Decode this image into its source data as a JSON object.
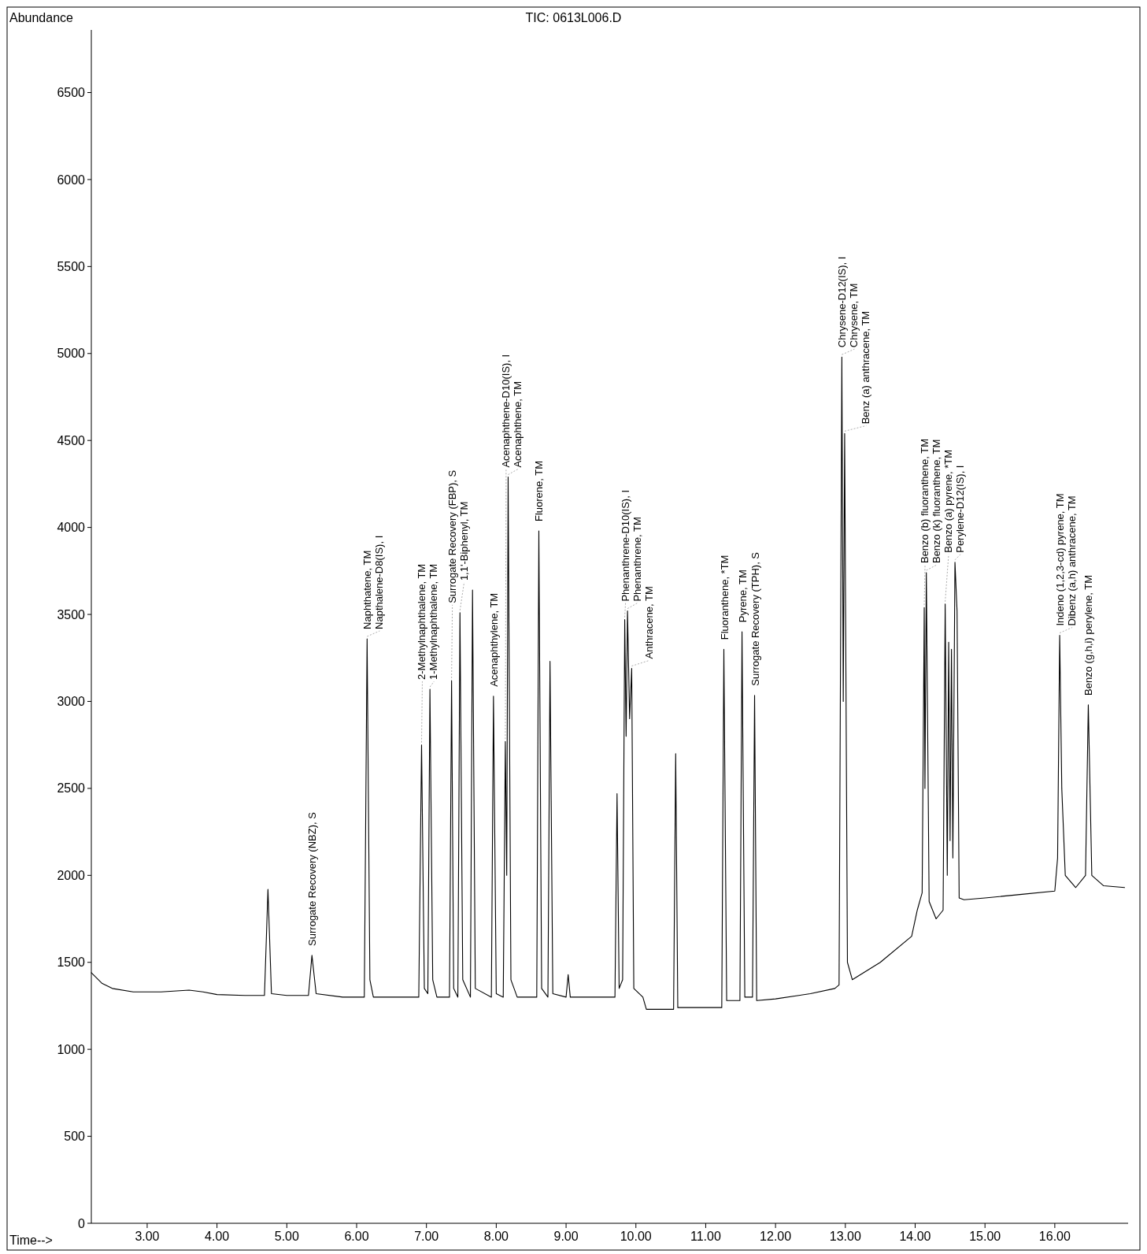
{
  "chart_data": {
    "type": "line",
    "title": "TIC: 0613L006.D",
    "xlabel": "Time-->",
    "ylabel": "Abundance",
    "xlim": [
      2.2,
      17.05
    ],
    "ylim": [
      0,
      6860
    ],
    "xticks": [
      {
        "value": 3,
        "label": "3.00"
      },
      {
        "value": 4,
        "label": "4.00"
      },
      {
        "value": 5,
        "label": "5.00"
      },
      {
        "value": 6,
        "label": "6.00"
      },
      {
        "value": 7,
        "label": "7.00"
      },
      {
        "value": 8,
        "label": "8.00"
      },
      {
        "value": 9,
        "label": "9.00"
      },
      {
        "value": 10,
        "label": "10.00"
      },
      {
        "value": 11,
        "label": "11.00"
      },
      {
        "value": 12,
        "label": "12.00"
      },
      {
        "value": 13,
        "label": "13.00"
      },
      {
        "value": 14,
        "label": "14.00"
      },
      {
        "value": 15,
        "label": "15.00"
      },
      {
        "value": 16,
        "label": "16.00"
      }
    ],
    "yticks": [
      0,
      500,
      1000,
      1500,
      2000,
      2500,
      3000,
      3500,
      4000,
      4500,
      5000,
      5500,
      6000,
      6500
    ],
    "grid": false,
    "marker": "none",
    "line_style": "solid",
    "series": [
      {
        "color": "#000000",
        "x": [
          2.2,
          2.35,
          2.5,
          2.8,
          3.2,
          3.6,
          3.8,
          4.0,
          4.4,
          4.68,
          4.73,
          4.78,
          5.0,
          5.31,
          5.36,
          5.42,
          5.8,
          6.11,
          6.15,
          6.19,
          6.24,
          6.5,
          6.89,
          6.93,
          6.97,
          7.02,
          7.05,
          7.09,
          7.15,
          7.33,
          7.36,
          7.39,
          7.45,
          7.48,
          7.52,
          7.63,
          7.66,
          7.7,
          7.93,
          7.96,
          8.0,
          8.1,
          8.13,
          8.15,
          8.17,
          8.21,
          8.3,
          8.58,
          8.61,
          8.65,
          8.74,
          8.77,
          8.81,
          9.0,
          9.03,
          9.06,
          9.5,
          9.7,
          9.73,
          9.76,
          9.81,
          9.84,
          9.86,
          9.88,
          9.91,
          9.94,
          9.97,
          10.1,
          10.15,
          10.2,
          10.5,
          10.54,
          10.57,
          10.6,
          11.0,
          11.23,
          11.26,
          11.3,
          11.49,
          11.52,
          11.56,
          11.67,
          11.7,
          11.73,
          12.0,
          12.5,
          12.85,
          12.91,
          12.95,
          12.97,
          12.99,
          13.03,
          13.1,
          13.5,
          13.95,
          14.03,
          14.1,
          14.13,
          14.14,
          14.16,
          14.2,
          14.3,
          14.4,
          14.43,
          14.46,
          14.48,
          14.5,
          14.52,
          14.54,
          14.57,
          14.6,
          14.63,
          14.7,
          15.0,
          15.5,
          16.0,
          16.04,
          16.07,
          16.1,
          16.15,
          16.3,
          16.44,
          16.48,
          16.53,
          16.7,
          17.0
        ],
        "values": [
          1440,
          1380,
          1350,
          1330,
          1330,
          1340,
          1330,
          1315,
          1310,
          1310,
          1920,
          1320,
          1310,
          1310,
          1540,
          1320,
          1300,
          1300,
          3360,
          1400,
          1300,
          1300,
          1300,
          2750,
          1350,
          1320,
          3070,
          1400,
          1300,
          1300,
          3120,
          1350,
          1300,
          3510,
          1400,
          1300,
          3640,
          1350,
          1300,
          3030,
          1320,
          1300,
          2770,
          2000,
          4290,
          1400,
          1300,
          1300,
          3980,
          1350,
          1300,
          3230,
          1320,
          1300,
          1430,
          1300,
          1300,
          1300,
          2470,
          1350,
          1400,
          3470,
          2800,
          3520,
          2900,
          3190,
          1350,
          1300,
          1230,
          1230,
          1230,
          1230,
          2700,
          1240,
          1240,
          1240,
          3300,
          1280,
          1280,
          3400,
          1300,
          1300,
          3035,
          1280,
          1290,
          1320,
          1350,
          1370,
          4980,
          3000,
          4540,
          1500,
          1400,
          1500,
          1650,
          1800,
          1900,
          3540,
          2500,
          3740,
          1850,
          1750,
          1800,
          3560,
          2000,
          3340,
          2200,
          3300,
          2100,
          3800,
          3520,
          1870,
          1860,
          1870,
          1890,
          1910,
          2100,
          3380,
          2500,
          2000,
          1930,
          2000,
          2980,
          2000,
          1940,
          1930
        ]
      }
    ],
    "annotations": [
      {
        "text": "Surrogate Recovery (NBZ), S",
        "x": 5.36,
        "y": 1540
      },
      {
        "text": "Naphthatene, TM",
        "x": 6.15,
        "y": 3360
      },
      {
        "text": "Napthalene-D8(IS), I",
        "x": 6.15,
        "y": 3360
      },
      {
        "text": "2-Methylnaphthalene, TM",
        "x": 6.93,
        "y": 2750
      },
      {
        "text": "1-Methylnaphthalene, TM",
        "x": 7.05,
        "y": 3070
      },
      {
        "text": "Surrogate Recovery (FBP), S",
        "x": 7.36,
        "y": 3120
      },
      {
        "text": "1,1'-Biphenyl, TM",
        "x": 7.48,
        "y": 3510
      },
      {
        "text": "Acenaphthylene, TM",
        "x": 7.96,
        "y": 3030
      },
      {
        "text": "Acenaphthene-D10(IS), I",
        "x": 8.13,
        "y": 2770
      },
      {
        "text": "Acenaphthene, TM",
        "x": 8.17,
        "y": 4290
      },
      {
        "text": "Fluorene, TM",
        "x": 8.61,
        "y": 3980
      },
      {
        "text": "Phenanthrene-D10(IS), I",
        "x": 9.84,
        "y": 3470
      },
      {
        "text": "Phenanthrene, TM",
        "x": 9.88,
        "y": 3520
      },
      {
        "text": "Anthracene, TM",
        "x": 9.94,
        "y": 3190
      },
      {
        "text": "Fluoranthene, *TM",
        "x": 11.26,
        "y": 3300
      },
      {
        "text": "Pyrene, TM",
        "x": 11.52,
        "y": 3400
      },
      {
        "text": "Surrogate Recovery (TPH), S",
        "x": 11.7,
        "y": 3035
      },
      {
        "text": "Chrysene-D12(IS), I",
        "x": 12.95,
        "y": 4980
      },
      {
        "text": "Chrysene, TM",
        "x": 12.95,
        "y": 4980
      },
      {
        "text": "Benz (a) anthracene, TM",
        "x": 12.99,
        "y": 4540
      },
      {
        "text": "Benzo (b) fluoranthene, TM",
        "x": 14.13,
        "y": 3540
      },
      {
        "text": "Benzo (k) fluoranthene, TM",
        "x": 14.16,
        "y": 3740
      },
      {
        "text": "Benzo (a) pyrene, *TM",
        "x": 14.43,
        "y": 3560
      },
      {
        "text": "Perylene-D12(IS), I",
        "x": 14.57,
        "y": 3800
      },
      {
        "text": "Indeno (1,2,3-cd) pyrene, TM",
        "x": 16.07,
        "y": 3380
      },
      {
        "text": "Dibenz (a,h) anthracene, TM",
        "x": 16.07,
        "y": 3380
      },
      {
        "text": "Benzo (g,h,i) perylene, TM",
        "x": 16.48,
        "y": 2980
      }
    ]
  }
}
